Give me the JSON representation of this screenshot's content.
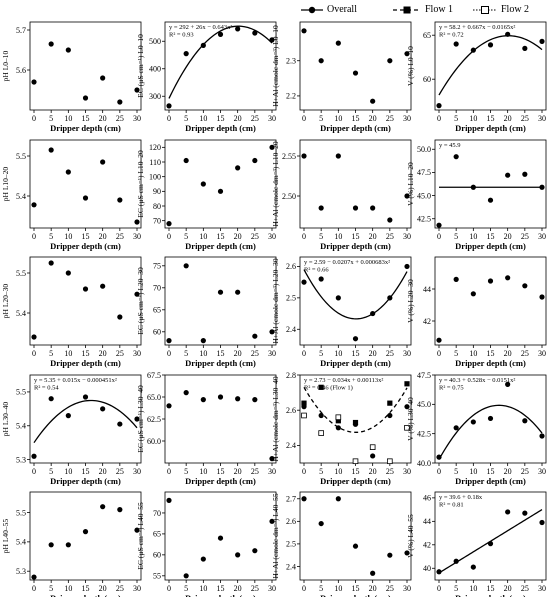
{
  "legend": {
    "overall": "Overall",
    "flow1": "Flow 1",
    "flow2": "Flow 2"
  },
  "colors": {
    "ink": "#000000",
    "background": "#ffffff"
  },
  "chart_data": [
    {
      "id": "ph_1",
      "type": "scatter",
      "xlabel": "Dripper depth (cm)",
      "ylabel": "pH L0–10",
      "xlim": [
        0,
        30
      ],
      "xticks": [
        0,
        5,
        10,
        15,
        20,
        25,
        30
      ],
      "ylim": [
        5.5,
        5.72
      ],
      "yticks": [
        "5.6",
        "5.7"
      ],
      "series": [
        {
          "x": [
            0,
            5,
            10,
            15,
            20,
            25,
            30
          ],
          "y": [
            5.57,
            5.665,
            5.65,
            5.53,
            5.58,
            5.52,
            5.55
          ]
        }
      ],
      "annotations": []
    },
    {
      "id": "ec_1",
      "type": "scatter",
      "xlabel": "Dripper depth (cm)",
      "ylabel": "EC (µS cm⁻¹) L0–10",
      "xlim": [
        0,
        30
      ],
      "xticks": [
        0,
        5,
        10,
        15,
        20,
        25,
        30
      ],
      "ylim": [
        250,
        570
      ],
      "yticks": [
        "300",
        "400",
        "500"
      ],
      "series": [
        {
          "x": [
            0,
            5,
            10,
            15,
            20,
            25,
            30
          ],
          "y": [
            265,
            455,
            485,
            525,
            545,
            530,
            505
          ]
        }
      ],
      "fit": {
        "kind": "quadratic",
        "coef": [
          292,
          26,
          -0.643
        ]
      },
      "annotations": [
        "y = 292 + 26x − 0.643x²",
        "R² = 0.93"
      ]
    },
    {
      "id": "hal_1",
      "type": "scatter",
      "xlabel": "Dripper depth (cm)",
      "ylabel": "H+Al (cmolc dm⁻³) L0–10",
      "xlim": [
        0,
        30
      ],
      "xticks": [
        0,
        5,
        10,
        15,
        20,
        25,
        30
      ],
      "ylim": [
        2.16,
        2.41
      ],
      "yticks": [
        "2.2",
        "2.3"
      ],
      "series": [
        {
          "x": [
            0,
            5,
            10,
            15,
            20,
            25,
            30
          ],
          "y": [
            2.385,
            2.3,
            2.35,
            2.265,
            2.185,
            2.3,
            2.32
          ]
        }
      ],
      "annotations": []
    },
    {
      "id": "v_1",
      "type": "scatter",
      "xlabel": "Dripper depth (cm)",
      "ylabel": "V (%) L0–10",
      "xlim": [
        0,
        30
      ],
      "xticks": [
        0,
        5,
        10,
        15,
        20,
        25,
        30
      ],
      "ylim": [
        56.5,
        66.5
      ],
      "yticks": [
        "60",
        "65"
      ],
      "series": [
        {
          "x": [
            0,
            5,
            10,
            15,
            20,
            25,
            30
          ],
          "y": [
            57,
            64,
            63.3,
            63.9,
            65.1,
            63.5,
            64.3
          ]
        }
      ],
      "fit": {
        "kind": "quadratic",
        "coef": [
          58.2,
          0.667,
          -0.0165
        ]
      },
      "annotations": [
        "y = 58.2 + 0.667x − 0.0165x²",
        "R² = 0.72"
      ]
    },
    {
      "id": "ph_2",
      "type": "scatter",
      "xlabel": "Dripper depth (cm)",
      "ylabel": "pH L10–20",
      "xlim": [
        0,
        30
      ],
      "xticks": [
        0,
        5,
        10,
        15,
        20,
        25,
        30
      ],
      "ylim": [
        5.32,
        5.54
      ],
      "yticks": [
        "5.4",
        "5.5"
      ],
      "series": [
        {
          "x": [
            0,
            5,
            10,
            15,
            20,
            25,
            30
          ],
          "y": [
            5.378,
            5.515,
            5.46,
            5.395,
            5.485,
            5.39,
            5.335
          ]
        }
      ],
      "annotations": []
    },
    {
      "id": "ec_2",
      "type": "scatter",
      "xlabel": "Dripper depth (cm)",
      "ylabel": "EC (µS cm⁻¹) L10–20",
      "xlim": [
        0,
        30
      ],
      "xticks": [
        0,
        5,
        10,
        15,
        20,
        25,
        30
      ],
      "ylim": [
        65,
        125
      ],
      "yticks": [
        "70",
        "80",
        "90",
        "100",
        "110",
        "120"
      ],
      "series": [
        {
          "x": [
            0,
            5,
            10,
            15,
            20,
            25,
            30
          ],
          "y": [
            68,
            111,
            95,
            90,
            106,
            111,
            120
          ]
        }
      ],
      "annotations": []
    },
    {
      "id": "hal_2",
      "type": "scatter",
      "xlabel": "Dripper depth (cm)",
      "ylabel": "H+Al (cmolc dm⁻³) L10–20",
      "xlim": [
        0,
        30
      ],
      "xticks": [
        0,
        5,
        10,
        15,
        20,
        25,
        30
      ],
      "ylim": [
        2.46,
        2.57
      ],
      "yticks": [
        "2.50",
        "2.55"
      ],
      "series": [
        {
          "x": [
            0,
            5,
            10,
            15,
            20,
            25,
            30
          ],
          "y": [
            2.55,
            2.485,
            2.55,
            2.485,
            2.485,
            2.47,
            2.5
          ]
        }
      ],
      "annotations": []
    },
    {
      "id": "v_2",
      "type": "scatter",
      "xlabel": "Dripper depth (cm)",
      "ylabel": "V (%) L10–20",
      "xlim": [
        0,
        30
      ],
      "xticks": [
        0,
        5,
        10,
        15,
        20,
        25,
        30
      ],
      "ylim": [
        41.5,
        51
      ],
      "yticks": [
        "42.5",
        "45.0",
        "47.5",
        "50.0"
      ],
      "series": [
        {
          "x": [
            0,
            5,
            10,
            15,
            20,
            25,
            30
          ],
          "y": [
            41.8,
            49.2,
            45.9,
            44.5,
            47.2,
            47.3,
            45.9
          ]
        }
      ],
      "fit": {
        "kind": "constant",
        "coef": [
          45.9
        ]
      },
      "annotations": [
        "y = 45.9"
      ]
    },
    {
      "id": "ph_3",
      "type": "scatter",
      "xlabel": "Dripper depth (cm)",
      "ylabel": "pH L20–30",
      "xlim": [
        0,
        30
      ],
      "xticks": [
        0,
        5,
        10,
        15,
        20,
        25,
        30
      ],
      "ylim": [
        5.32,
        5.54
      ],
      "yticks": [
        "5.4",
        "5.5"
      ],
      "series": [
        {
          "x": [
            0,
            5,
            10,
            15,
            20,
            25,
            30
          ],
          "y": [
            5.34,
            5.525,
            5.5,
            5.46,
            5.467,
            5.39,
            5.447
          ]
        }
      ],
      "annotations": []
    },
    {
      "id": "ec_3",
      "type": "scatter",
      "xlabel": "Dripper depth (cm)",
      "ylabel": "EC (µS cm⁻¹) L20–30",
      "xlim": [
        0,
        30
      ],
      "xticks": [
        0,
        5,
        10,
        15,
        20,
        25,
        30
      ],
      "ylim": [
        57,
        77
      ],
      "yticks": [
        "60",
        "65",
        "70",
        "75"
      ],
      "series": [
        {
          "x": [
            0,
            5,
            10,
            15,
            20,
            25,
            30
          ],
          "y": [
            58,
            75,
            58,
            69,
            69,
            59,
            60
          ]
        }
      ],
      "annotations": []
    },
    {
      "id": "hal_3",
      "type": "scatter",
      "xlabel": "Dripper depth (cm)",
      "ylabel": "H+Al (cmolc dm⁻³) L20–30",
      "xlim": [
        0,
        30
      ],
      "xticks": [
        0,
        5,
        10,
        15,
        20,
        25,
        30
      ],
      "ylim": [
        2.35,
        2.63
      ],
      "yticks": [
        "2.4",
        "2.5",
        "2.6"
      ],
      "series": [
        {
          "x": [
            0,
            5,
            10,
            15,
            20,
            25,
            30
          ],
          "y": [
            2.55,
            2.56,
            2.5,
            2.37,
            2.45,
            2.5,
            2.6
          ]
        }
      ],
      "fit": {
        "kind": "quadratic",
        "coef": [
          2.59,
          -0.0207,
          0.000683
        ]
      },
      "annotations": [
        "y = 2.59 − 0.0207x + 0.000683x²",
        "R² = 0.66"
      ]
    },
    {
      "id": "v_3",
      "type": "scatter",
      "xlabel": "Dripper depth (cm)",
      "ylabel": "V (%) L20–30",
      "xlim": [
        0,
        30
      ],
      "xticks": [
        0,
        5,
        10,
        15,
        20,
        25,
        30
      ],
      "ylim": [
        40.5,
        46
      ],
      "yticks": [
        "42",
        "44"
      ],
      "series": [
        {
          "x": [
            0,
            5,
            10,
            15,
            20,
            25,
            30
          ],
          "y": [
            40.8,
            44.6,
            43.7,
            44.5,
            44.7,
            44.2,
            43.5
          ]
        }
      ],
      "annotations": []
    },
    {
      "id": "ph_4",
      "type": "scatter",
      "xlabel": "Dripper depth (cm)",
      "ylabel": "pH L30–40",
      "xlim": [
        0,
        30
      ],
      "xticks": [
        0,
        5,
        10,
        15,
        20,
        25,
        30
      ],
      "ylim": [
        5.29,
        5.55
      ],
      "yticks": [
        "5.3",
        "5.4",
        "5.5"
      ],
      "series": [
        {
          "x": [
            0,
            5,
            10,
            15,
            20,
            25,
            30
          ],
          "y": [
            5.31,
            5.48,
            5.43,
            5.485,
            5.45,
            5.405,
            5.42
          ]
        }
      ],
      "fit": {
        "kind": "quadratic",
        "coef": [
          5.35,
          0.015,
          -0.000451
        ]
      },
      "annotations": [
        "y = 5.35 + 0.015x − 0.000451x²",
        "R² = 0.54"
      ]
    },
    {
      "id": "ec_4",
      "type": "scatter",
      "xlabel": "Dripper depth (cm)",
      "ylabel": "EC (µS cm⁻¹) L30–40",
      "xlim": [
        0,
        30
      ],
      "xticks": [
        0,
        5,
        10,
        15,
        20,
        25,
        30
      ],
      "ylim": [
        57.5,
        67.5
      ],
      "yticks": [
        "60.0",
        "62.5",
        "65.0",
        "67.5"
      ],
      "series": [
        {
          "x": [
            0,
            5,
            10,
            15,
            20,
            25,
            30
          ],
          "y": [
            64,
            65.5,
            64.7,
            65,
            64.8,
            64.7,
            58
          ]
        }
      ],
      "annotations": []
    },
    {
      "id": "hal_4",
      "type": "scatter",
      "xlabel": "Dripper depth (cm)",
      "ylabel": "H+Al (cmolc dm⁻³) L30–40",
      "xlim": [
        0,
        30
      ],
      "xticks": [
        0,
        5,
        10,
        15,
        20,
        25,
        30
      ],
      "ylim": [
        2.3,
        2.8
      ],
      "yticks": [
        "2.4",
        "2.6",
        "2.8"
      ],
      "series": [
        {
          "name": "Overall",
          "marker": "circle",
          "x": [
            0,
            5,
            10,
            15,
            20,
            25,
            30
          ],
          "y": [
            2.62,
            2.57,
            2.5,
            2.52,
            2.34,
            2.57,
            2.62
          ]
        },
        {
          "name": "Flow 1",
          "marker": "square-filled",
          "x": [
            0,
            5,
            10,
            15,
            20,
            25,
            30
          ],
          "y": [
            2.64,
            2.73,
            2.54,
            2.53,
            2.39,
            2.64,
            2.75
          ]
        },
        {
          "name": "Flow 2",
          "marker": "square-open",
          "x": [
            0,
            5,
            10,
            15,
            20,
            25,
            30
          ],
          "y": [
            2.57,
            2.47,
            2.56,
            2.31,
            2.39,
            2.31,
            2.5
          ]
        }
      ],
      "fit": {
        "kind": "quadratic",
        "dashed": true,
        "coef": [
          2.73,
          -0.034,
          0.00113
        ]
      },
      "annotations": [
        "y = 2.73 − 0.034x + 0.00113x²",
        "R² = 0.46 (Flow 1)"
      ]
    },
    {
      "id": "v_4",
      "type": "scatter",
      "xlabel": "Dripper depth (cm)",
      "ylabel": "V (%) L30–40",
      "xlim": [
        0,
        30
      ],
      "xticks": [
        0,
        5,
        10,
        15,
        20,
        25,
        30
      ],
      "ylim": [
        40,
        47.5
      ],
      "yticks": [
        "40.0",
        "42.5",
        "45.0",
        "47.5"
      ],
      "series": [
        {
          "x": [
            0,
            5,
            10,
            15,
            20,
            25,
            30
          ],
          "y": [
            40.5,
            43,
            43.5,
            43.8,
            46.7,
            43.6,
            42.3
          ]
        }
      ],
      "fit": {
        "kind": "quadratic",
        "coef": [
          40.3,
          0.528,
          -0.0151
        ]
      },
      "annotations": [
        "y = 40.3 + 0.528x − 0.0151x²",
        "R² = 0.75"
      ]
    },
    {
      "id": "ph_5",
      "type": "scatter",
      "xlabel": "Dripper depth (cm)",
      "ylabel": "pH L40–55",
      "xlim": [
        0,
        30
      ],
      "xticks": [
        0,
        5,
        10,
        15,
        20,
        25,
        30
      ],
      "ylim": [
        5.27,
        5.57
      ],
      "yticks": [
        "5.3",
        "5.4",
        "5.5"
      ],
      "series": [
        {
          "x": [
            0,
            5,
            10,
            15,
            20,
            25,
            30
          ],
          "y": [
            5.28,
            5.39,
            5.39,
            5.435,
            5.52,
            5.51,
            5.44
          ]
        }
      ],
      "annotations": []
    },
    {
      "id": "ec_5",
      "type": "scatter",
      "xlabel": "Dripper depth (cm)",
      "ylabel": "EC (µS cm⁻¹) L40–55",
      "xlim": [
        0,
        30
      ],
      "xticks": [
        0,
        5,
        10,
        15,
        20,
        25,
        30
      ],
      "ylim": [
        54,
        75
      ],
      "yticks": [
        "55",
        "60",
        "65",
        "70"
      ],
      "series": [
        {
          "x": [
            0,
            5,
            10,
            15,
            20,
            25,
            30
          ],
          "y": [
            73,
            55,
            59,
            64,
            60,
            61,
            68
          ]
        }
      ],
      "annotations": []
    },
    {
      "id": "hal_5",
      "type": "scatter",
      "xlabel": "Dripper depth (cm)",
      "ylabel": "H+Al (cmolc dm⁻³) L40–55",
      "xlim": [
        0,
        30
      ],
      "xticks": [
        0,
        5,
        10,
        15,
        20,
        25,
        30
      ],
      "ylim": [
        2.34,
        2.73
      ],
      "yticks": [
        "2.4",
        "2.5",
        "2.6",
        "2.7"
      ],
      "series": [
        {
          "x": [
            0,
            5,
            10,
            15,
            20,
            25,
            30
          ],
          "y": [
            2.7,
            2.59,
            2.7,
            2.49,
            2.37,
            2.45,
            2.46
          ]
        }
      ],
      "annotations": []
    },
    {
      "id": "v_5",
      "type": "scatter",
      "xlabel": "Dripper depth (cm)",
      "ylabel": "V (%) L40–55",
      "xlim": [
        0,
        30
      ],
      "xticks": [
        0,
        5,
        10,
        15,
        20,
        25,
        30
      ],
      "ylim": [
        39,
        46.5
      ],
      "yticks": [
        "40",
        "42",
        "44",
        "46"
      ],
      "series": [
        {
          "x": [
            0,
            5,
            10,
            15,
            20,
            25,
            30
          ],
          "y": [
            39.7,
            40.6,
            40.1,
            42.1,
            44.8,
            44.7,
            43.9
          ]
        }
      ],
      "fit": {
        "kind": "linear",
        "coef": [
          39.6,
          0.18
        ]
      },
      "annotations": [
        "y = 39.6 + 0.18x",
        "R² = 0.81"
      ]
    }
  ]
}
